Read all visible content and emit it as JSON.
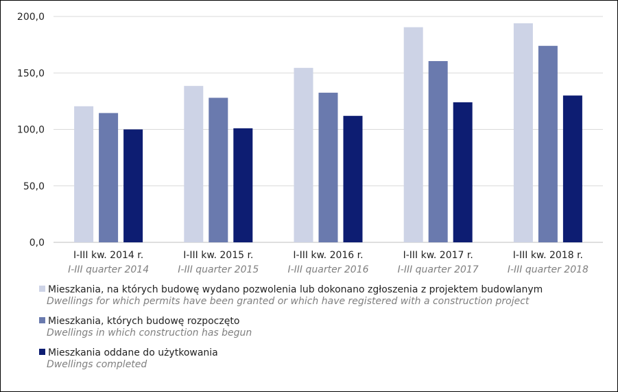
{
  "chart_data": {
    "type": "bar",
    "categories": [
      {
        "pl": "I-III kw. 2014 r.",
        "en": "I-III quarter 2014"
      },
      {
        "pl": "I-III kw. 2015 r.",
        "en": "I-III quarter 2015"
      },
      {
        "pl": "I-III kw. 2016 r.",
        "en": "I-III quarter 2016"
      },
      {
        "pl": "I-III kw. 2017 r.",
        "en": "I-III quarter 2017"
      },
      {
        "pl": "I-III kw. 2018 r.",
        "en": "I-III quarter 2018"
      }
    ],
    "series": [
      {
        "name": "Mieszkania, na których budowę wydano pozwolenia lub dokonano zgłoszenia z projektem budowlanym",
        "name_en": "Dwellings for which permits have been granted or which have registered with a construction project",
        "color": "#cdd3e6",
        "values": [
          120.5,
          138.5,
          154.5,
          190.5,
          194.0
        ]
      },
      {
        "name": "Mieszkania, których budowę rozpoczęto",
        "name_en": "Dwellings in which construction has begun",
        "color": "#6a7aae",
        "values": [
          114.5,
          128.0,
          132.5,
          160.5,
          174.0
        ]
      },
      {
        "name": "Mieszkania oddane do użytkowania",
        "name_en": "Dwellings completed",
        "color": "#0d1d72",
        "values": [
          100.0,
          101.0,
          112.0,
          124.0,
          130.0
        ]
      }
    ],
    "yticks": [
      "0,0",
      "50,0",
      "100,0",
      "150,0",
      "200,0"
    ],
    "ylim": [
      0,
      200
    ],
    "grid": true,
    "legend_position": "bottom"
  }
}
